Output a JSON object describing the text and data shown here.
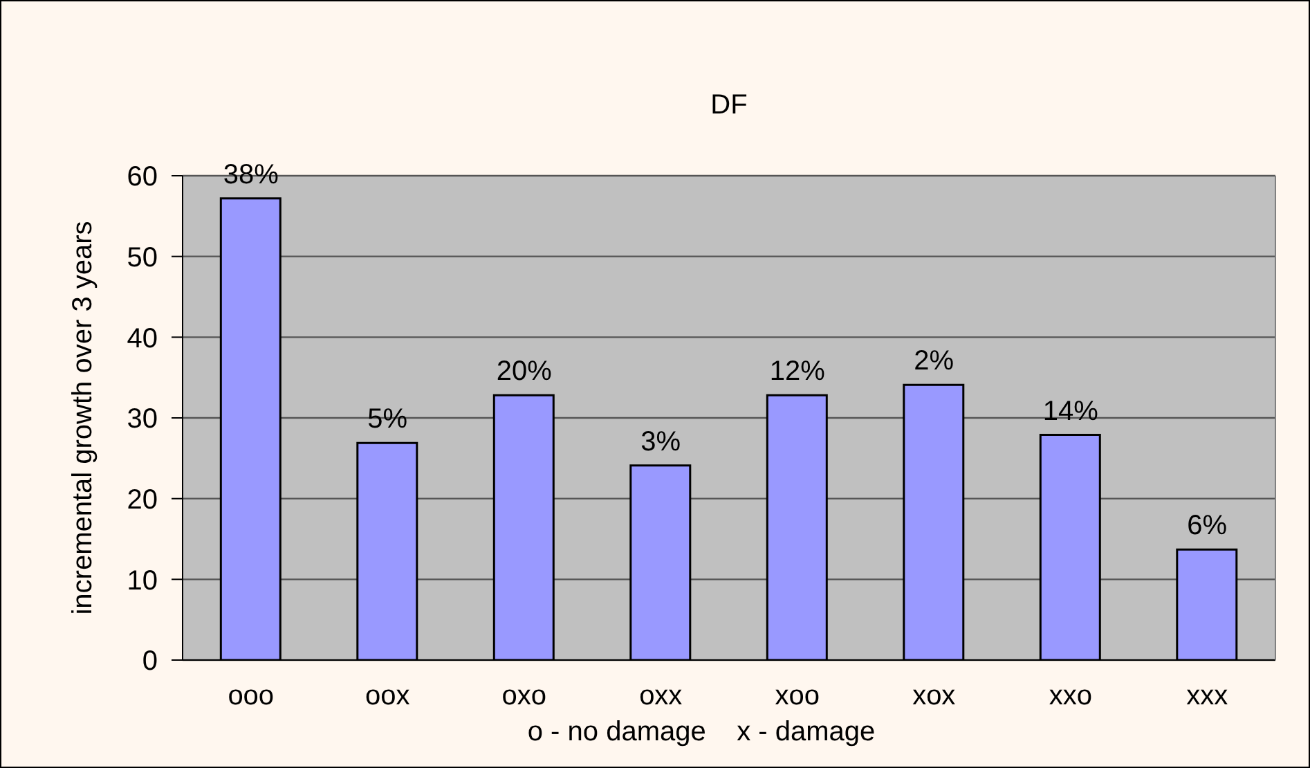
{
  "chart_data": {
    "type": "bar",
    "title": "DF",
    "xlabel": "o - no damage    x - damage",
    "ylabel": "incremental growth over 3 years",
    "categories": [
      "ooo",
      "oox",
      "oxo",
      "oxx",
      "xoo",
      "xox",
      "xxo",
      "xxx"
    ],
    "values": [
      57.2,
      26.9,
      32.8,
      24.1,
      32.8,
      34.1,
      27.9,
      13.7
    ],
    "annotations": [
      {
        "text": "38%",
        "x": "ooo",
        "y": 57.2
      },
      {
        "text": "5%",
        "x": "oox",
        "y": 26.9
      },
      {
        "text": "20%",
        "x": "oxo",
        "y": 32.8
      },
      {
        "text": "3%",
        "x": "oxx",
        "y": 24.1
      },
      {
        "text": "12%",
        "x": "xoo",
        "y": 32.8
      },
      {
        "text": "2%",
        "x": "xox",
        "y": 34.1
      },
      {
        "text": "14%",
        "x": "xxo",
        "y": 27.9
      },
      {
        "text": "6%",
        "x": "xxx",
        "y": 13.7
      }
    ],
    "color": "#9999ff",
    "ylim": [
      0,
      60
    ],
    "yticks": [
      0,
      10,
      20,
      30,
      40,
      50,
      60
    ],
    "grid": "y"
  }
}
